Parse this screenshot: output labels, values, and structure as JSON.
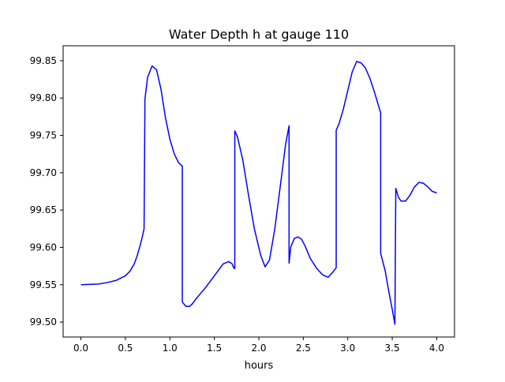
{
  "chart_data": {
    "type": "line",
    "title": "Water Depth h at gauge 110",
    "xlabel": "hours",
    "ylabel": "",
    "xlim": [
      -0.2,
      4.2
    ],
    "ylim": [
      99.48,
      99.87
    ],
    "xticks": [
      0.0,
      0.5,
      1.0,
      1.5,
      2.0,
      2.5,
      3.0,
      3.5,
      4.0
    ],
    "xtick_labels": [
      "0.0",
      "0.5",
      "1.0",
      "1.5",
      "2.0",
      "2.5",
      "3.0",
      "3.5",
      "4.0"
    ],
    "yticks": [
      99.5,
      99.55,
      99.6,
      99.65,
      99.7,
      99.75,
      99.8,
      99.85
    ],
    "ytick_labels": [
      "99.50",
      "99.55",
      "99.60",
      "99.65",
      "99.70",
      "99.75",
      "99.80",
      "99.85"
    ],
    "grid": false,
    "series": [
      {
        "color": "#0000ff",
        "x": [
          0.0,
          0.2,
          0.3,
          0.4,
          0.5,
          0.55,
          0.6,
          0.63,
          0.66,
          0.69,
          0.71,
          0.72,
          0.75,
          0.8,
          0.85,
          0.9,
          0.95,
          1.0,
          1.05,
          1.1,
          1.14,
          1.14,
          1.18,
          1.22,
          1.25,
          1.3,
          1.4,
          1.5,
          1.6,
          1.66,
          1.7,
          1.72,
          1.73,
          1.73,
          1.76,
          1.82,
          1.88,
          1.95,
          2.02,
          2.07,
          2.12,
          2.18,
          2.25,
          2.3,
          2.34,
          2.34,
          2.36,
          2.4,
          2.44,
          2.48,
          2.52,
          2.58,
          2.65,
          2.72,
          2.78,
          2.84,
          2.87,
          2.87,
          2.9,
          2.95,
          3.0,
          3.05,
          3.1,
          3.15,
          3.2,
          3.25,
          3.3,
          3.35,
          3.37,
          3.37,
          3.42,
          3.46,
          3.5,
          3.53,
          3.53,
          3.54,
          3.57,
          3.6,
          3.65,
          3.7,
          3.75,
          3.8,
          3.85,
          3.9,
          3.95,
          4.0
        ],
        "y": [
          99.55,
          99.551,
          99.553,
          99.556,
          99.562,
          99.568,
          99.578,
          99.588,
          99.6,
          99.614,
          99.625,
          99.799,
          99.828,
          99.843,
          99.838,
          99.812,
          99.774,
          99.745,
          99.725,
          99.713,
          99.709,
          99.527,
          99.521,
          99.521,
          99.524,
          99.532,
          99.546,
          99.562,
          99.578,
          99.581,
          99.578,
          99.572,
          99.572,
          99.756,
          99.748,
          99.717,
          99.673,
          99.625,
          99.59,
          99.574,
          99.583,
          99.625,
          99.69,
          99.737,
          99.763,
          99.579,
          99.601,
          99.612,
          99.614,
          99.611,
          99.602,
          99.585,
          99.572,
          99.563,
          99.56,
          99.568,
          99.573,
          99.757,
          99.765,
          99.785,
          99.81,
          99.835,
          99.849,
          99.847,
          99.84,
          99.826,
          99.808,
          99.788,
          99.78,
          99.592,
          99.569,
          99.542,
          99.517,
          99.497,
          99.497,
          99.679,
          99.667,
          99.662,
          99.662,
          99.67,
          99.681,
          99.687,
          99.686,
          99.681,
          99.675,
          99.673
        ]
      }
    ]
  }
}
